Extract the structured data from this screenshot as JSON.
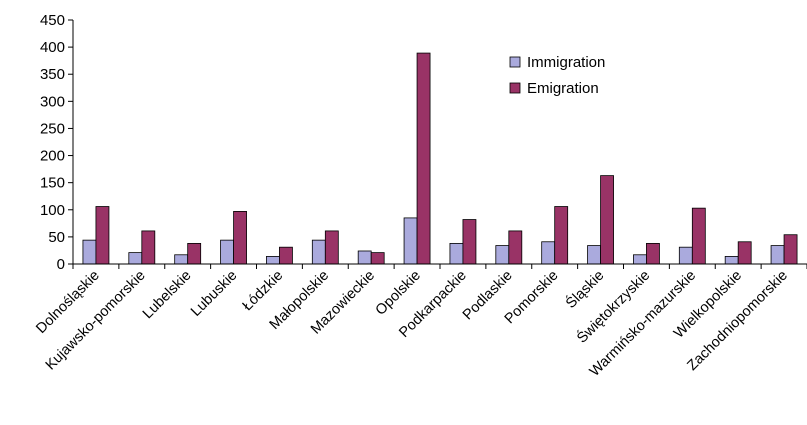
{
  "chart_data": {
    "type": "bar",
    "title": "",
    "xlabel": "",
    "ylabel": "",
    "ylim": [
      0,
      450
    ],
    "yticks": [
      0,
      50,
      100,
      150,
      200,
      250,
      300,
      350,
      400,
      450
    ],
    "grid": false,
    "legend_position": "top-right",
    "categories": [
      "Dolnośląskie",
      "Kujawsko-pomorskie",
      "Lubelskie",
      "Lubuskie",
      "Łódzkie",
      "Małopolskie",
      "Mazowieckie",
      "Opolskie",
      "Podkarpackie",
      "Podlaskie",
      "Pomorskie",
      "Śląskie",
      "Świętokrzyskie",
      "Warmińsko-mazurskie",
      "Wielkopolskie",
      "Zachodniopomorskie"
    ],
    "series": [
      {
        "name": "Immigration",
        "color": "#aaaadd",
        "values": [
          44,
          21,
          17,
          44,
          14,
          44,
          24,
          85,
          38,
          34,
          41,
          34,
          17,
          31,
          14,
          34
        ]
      },
      {
        "name": "Emigration",
        "color": "#993366",
        "values": [
          106,
          61,
          38,
          97,
          31,
          61,
          21,
          389,
          82,
          61,
          106,
          163,
          38,
          103,
          41,
          54
        ]
      }
    ]
  }
}
